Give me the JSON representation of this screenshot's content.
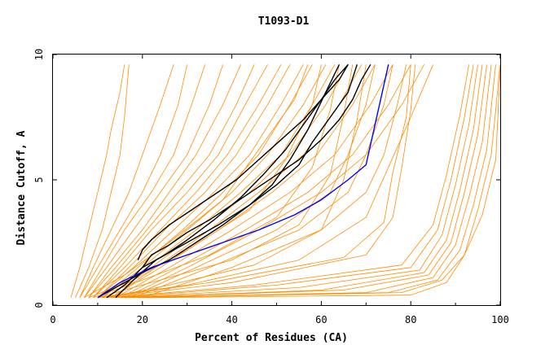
{
  "chart_data": {
    "type": "line",
    "title": "T1093-D1",
    "xlabel": "Percent of Residues (CA)",
    "ylabel": "Distance Cutoff, A",
    "xlim": [
      0,
      100
    ],
    "ylim": [
      0,
      10
    ],
    "x_ticks": [
      "0",
      "20",
      "40",
      "60",
      "80",
      "100"
    ],
    "y_ticks": [
      "0",
      "5",
      "10"
    ],
    "grid": false,
    "legend": "none",
    "colors": {
      "models": "#ff8c00",
      "highlight_black": "#000000",
      "highlight_blue": "#0000ff"
    },
    "series": [
      {
        "values_x": [
          4,
          6,
          8,
          10,
          12,
          13,
          15,
          16
        ],
        "values_y": [
          0.3,
          1.5,
          3,
          4.5,
          6,
          7,
          8.5,
          9.6
        ]
      },
      {
        "values_x": [
          5,
          8,
          11,
          13,
          15,
          16,
          17
        ],
        "values_y": [
          0.3,
          1.5,
          3,
          4.5,
          6,
          7.5,
          9.6
        ]
      },
      {
        "values_x": [
          6,
          9,
          13,
          17,
          20,
          24,
          27
        ],
        "values_y": [
          0.3,
          1.5,
          3,
          4.5,
          6,
          8,
          9.6
        ]
      },
      {
        "values_x": [
          6,
          10,
          15,
          20,
          24,
          28,
          30
        ],
        "values_y": [
          0.3,
          1.5,
          3,
          4.5,
          6,
          8,
          9.6
        ]
      },
      {
        "values_x": [
          7,
          11,
          16,
          22,
          27,
          31,
          34
        ],
        "values_y": [
          0.3,
          1.5,
          3,
          4.5,
          6,
          8,
          9.6
        ]
      },
      {
        "values_x": [
          7,
          12,
          18,
          24,
          30,
          35,
          38
        ],
        "values_y": [
          0.3,
          1.5,
          3,
          4.5,
          6,
          8,
          9.6
        ]
      },
      {
        "values_x": [
          8,
          13,
          20,
          26,
          32,
          38,
          42
        ],
        "values_y": [
          0.3,
          1.5,
          3,
          4.5,
          6,
          8,
          9.6
        ]
      },
      {
        "values_x": [
          8,
          14,
          21,
          28,
          35,
          41,
          45
        ],
        "values_y": [
          0.3,
          1.5,
          3,
          4.5,
          6,
          8,
          9.6
        ]
      },
      {
        "values_x": [
          9,
          15,
          22,
          30,
          37,
          43,
          48
        ],
        "values_y": [
          0.3,
          1.5,
          3,
          4.5,
          6,
          8,
          9.6
        ]
      },
      {
        "values_x": [
          9,
          16,
          24,
          32,
          39,
          46,
          51
        ],
        "values_y": [
          0.3,
          1.5,
          3,
          4.5,
          6,
          8,
          9.6
        ]
      },
      {
        "values_x": [
          10,
          17,
          25,
          34,
          41,
          48,
          53
        ],
        "values_y": [
          0.3,
          1.5,
          3,
          4.5,
          6,
          8,
          9.6
        ]
      },
      {
        "values_x": [
          10,
          18,
          27,
          36,
          44,
          51,
          56
        ],
        "values_y": [
          0.3,
          1.5,
          3,
          4.5,
          6,
          8,
          9.6
        ]
      },
      {
        "values_x": [
          11,
          19,
          29,
          38,
          46,
          53,
          58
        ],
        "values_y": [
          0.3,
          1.5,
          3,
          4.5,
          6,
          8,
          9.6
        ]
      },
      {
        "values_x": [
          11,
          20,
          30,
          40,
          48,
          56,
          61
        ],
        "values_y": [
          0.3,
          1.5,
          3,
          4.5,
          6,
          8,
          9.6
        ]
      },
      {
        "values_x": [
          12,
          21,
          32,
          42,
          51,
          58,
          63
        ],
        "values_y": [
          0.3,
          1.5,
          3,
          4.5,
          6,
          8,
          9.6
        ]
      },
      {
        "values_x": [
          12,
          22,
          33,
          44,
          53,
          61,
          66
        ],
        "values_y": [
          0.3,
          1.5,
          3,
          4.5,
          6,
          8,
          9.6
        ]
      },
      {
        "values_x": [
          13,
          23,
          35,
          46,
          56,
          64,
          69
        ],
        "values_y": [
          0.3,
          1.5,
          3,
          4.5,
          6,
          8,
          9.6
        ]
      },
      {
        "values_x": [
          13,
          24,
          37,
          49,
          59,
          67,
          72
        ],
        "values_y": [
          0.3,
          1.5,
          3,
          4.5,
          6,
          8,
          9.6
        ]
      },
      {
        "values_x": [
          14,
          26,
          40,
          53,
          63,
          71,
          76
        ],
        "values_y": [
          0.3,
          1.5,
          3,
          4.5,
          6,
          8,
          9.6
        ]
      },
      {
        "values_x": [
          15,
          28,
          43,
          57,
          67,
          75,
          80
        ],
        "values_y": [
          0.3,
          1.5,
          3,
          4.5,
          6,
          8,
          9.6
        ]
      },
      {
        "values_x": [
          16,
          30,
          46,
          60,
          70,
          78,
          83
        ],
        "values_y": [
          0.3,
          1.5,
          3,
          4.5,
          6,
          8,
          9.6
        ]
      },
      {
        "values_x": [
          17,
          32,
          50,
          62,
          66,
          70,
          72
        ],
        "values_y": [
          0.3,
          1.5,
          3,
          4.5,
          6,
          8,
          9.6
        ]
      },
      {
        "values_x": [
          18,
          35,
          55,
          66,
          70,
          74,
          76
        ],
        "values_y": [
          0.3,
          1.5,
          3,
          4.5,
          6,
          8,
          9.6
        ]
      },
      {
        "values_x": [
          20,
          40,
          60,
          70,
          74,
          77,
          79
        ],
        "values_y": [
          0.3,
          1.5,
          3,
          4.5,
          6,
          8,
          9.6
        ]
      },
      {
        "values_x": [
          10,
          30,
          55,
          70,
          75,
          80,
          85
        ],
        "values_y": [
          0.3,
          0.8,
          1.8,
          3.5,
          5.5,
          7.5,
          9.6
        ]
      },
      {
        "values_x": [
          12,
          40,
          70,
          76,
          78,
          80,
          81
        ],
        "values_y": [
          0.3,
          0.9,
          2.0,
          3.5,
          5.5,
          7.8,
          9.6
        ]
      },
      {
        "values_x": [
          14,
          50,
          80,
          86,
          89,
          92,
          94
        ],
        "values_y": [
          0.3,
          0.8,
          1.5,
          3,
          5,
          7.5,
          9.6
        ]
      },
      {
        "values_x": [
          15,
          55,
          82,
          87,
          90,
          93,
          95
        ],
        "values_y": [
          0.3,
          0.7,
          1.4,
          2.8,
          4.8,
          7.2,
          9.6
        ]
      },
      {
        "values_x": [
          16,
          60,
          83,
          88,
          91,
          94,
          96
        ],
        "values_y": [
          0.3,
          0.6,
          1.3,
          2.6,
          4.6,
          7.0,
          9.6
        ]
      },
      {
        "values_x": [
          17,
          65,
          84,
          89,
          92,
          95,
          97
        ],
        "values_y": [
          0.3,
          0.6,
          1.2,
          2.5,
          4.5,
          6.8,
          9.6
        ]
      },
      {
        "values_x": [
          18,
          70,
          85,
          90,
          93,
          96,
          98
        ],
        "values_y": [
          0.3,
          0.5,
          1.1,
          2.4,
          4.3,
          6.5,
          9.6
        ]
      },
      {
        "values_x": [
          19,
          75,
          86,
          91,
          94,
          97,
          99
        ],
        "values_y": [
          0.3,
          0.5,
          1.0,
          2.2,
          4.0,
          6.2,
          9.6
        ]
      },
      {
        "values_x": [
          20,
          78,
          87,
          92,
          95,
          98,
          100
        ],
        "values_y": [
          0.3,
          0.5,
          1.0,
          2.0,
          3.8,
          6.0,
          9.6
        ]
      },
      {
        "values_x": [
          21,
          80,
          88,
          92,
          96,
          99,
          100
        ],
        "values_y": [
          0.3,
          0.4,
          0.9,
          2.0,
          3.6,
          5.8,
          9.4
        ]
      },
      {
        "values_x": [
          13,
          45,
          78,
          85,
          88,
          91,
          93
        ],
        "values_y": [
          0.3,
          0.8,
          1.6,
          3.2,
          5.2,
          7.6,
          9.6
        ]
      },
      {
        "values_x": [
          11,
          35,
          65,
          74,
          76,
          79,
          80
        ],
        "values_y": [
          0.3,
          0.9,
          1.9,
          3.3,
          5.3,
          7.5,
          9.6
        ]
      },
      {
        "values_x": [
          9,
          20,
          35,
          50,
          58,
          62,
          64
        ],
        "values_y": [
          0.3,
          1.0,
          2.0,
          3.5,
          5.5,
          7.8,
          9.6
        ]
      },
      {
        "values_x": [
          8,
          18,
          30,
          44,
          52,
          58,
          60
        ],
        "values_y": [
          0.3,
          1.0,
          2.2,
          3.8,
          5.8,
          8.0,
          9.6
        ]
      },
      {
        "values_x": [
          7,
          16,
          26,
          38,
          46,
          54,
          57
        ],
        "values_y": [
          0.3,
          1.2,
          2.5,
          4.2,
          6.2,
          8.2,
          9.6
        ]
      },
      {
        "values_x": [
          10,
          22,
          40,
          55,
          62,
          65,
          67
        ],
        "values_y": [
          0.3,
          0.9,
          1.8,
          3.2,
          5.2,
          7.6,
          9.6
        ]
      },
      {
        "values_x": [
          12,
          26,
          45,
          60,
          65,
          68,
          70
        ],
        "values_y": [
          0.3,
          0.8,
          1.6,
          3.0,
          5.0,
          7.4,
          9.6
        ]
      }
    ],
    "highlight_black": [
      {
        "values_x": [
          10,
          15,
          20,
          26,
          32,
          38,
          44,
          49,
          53,
          57,
          61,
          64
        ],
        "values_y": [
          0.3,
          0.8,
          1.3,
          1.8,
          2.5,
          3.2,
          4.0,
          4.8,
          5.8,
          7.0,
          8.5,
          9.6
        ]
      },
      {
        "values_x": [
          12,
          16,
          20,
          25,
          30,
          36,
          42,
          47,
          52,
          56,
          60,
          63,
          66
        ],
        "values_y": [
          0.3,
          0.8,
          1.5,
          2.0,
          2.6,
          3.4,
          4.3,
          5.2,
          6.2,
          7.2,
          8.2,
          9.0,
          9.6
        ]
      },
      {
        "values_x": [
          14,
          18,
          23,
          30,
          37,
          44,
          50,
          55,
          58,
          62,
          66,
          68
        ],
        "values_y": [
          0.3,
          1.0,
          1.8,
          2.5,
          3.2,
          4.0,
          4.8,
          5.6,
          6.5,
          7.5,
          8.5,
          9.6
        ]
      },
      {
        "values_x": [
          19,
          20,
          22,
          26,
          31,
          36,
          41,
          46,
          51,
          56,
          60,
          64,
          66
        ],
        "values_y": [
          1.8,
          2.2,
          2.6,
          3.2,
          3.8,
          4.4,
          5.0,
          5.8,
          6.6,
          7.4,
          8.2,
          9.0,
          9.6
        ]
      },
      {
        "values_x": [
          20,
          22,
          26,
          30,
          35,
          40,
          45,
          50,
          55,
          60,
          64,
          67,
          69,
          71
        ],
        "values_y": [
          1.5,
          2.0,
          2.4,
          2.9,
          3.4,
          4.0,
          4.6,
          5.2,
          5.8,
          6.6,
          7.4,
          8.2,
          9.0,
          9.6
        ]
      }
    ],
    "highlight_blue": {
      "values_x": [
        10,
        15,
        22,
        30,
        38,
        46,
        54,
        60,
        66,
        70,
        71,
        72,
        73,
        74,
        75
      ],
      "values_y": [
        0.3,
        0.9,
        1.5,
        2.0,
        2.5,
        3.0,
        3.6,
        4.2,
        5.0,
        5.6,
        6.4,
        7.2,
        8.0,
        8.8,
        9.6
      ]
    }
  }
}
